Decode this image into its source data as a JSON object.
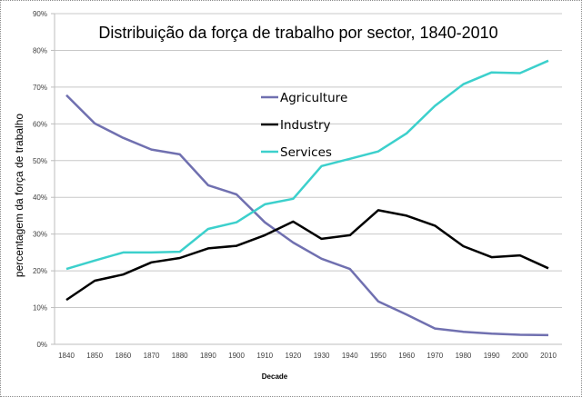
{
  "chart_data": {
    "type": "line",
    "title": "Distribuição da força de trabalho por sector, 1840-2010",
    "xlabel": "Decade",
    "ylabel": "percentagem da força de trabalho",
    "ylim": [
      0,
      90
    ],
    "yticks": [
      "0%",
      "10%",
      "20%",
      "30%",
      "40%",
      "50%",
      "60%",
      "70%",
      "80%",
      "90%"
    ],
    "ytick_values": [
      0,
      10,
      20,
      30,
      40,
      50,
      60,
      70,
      80,
      90
    ],
    "grid": true,
    "legend_position": "top-center",
    "x": [
      "1840",
      "1850",
      "1860",
      "1870",
      "1880",
      "1890",
      "1900",
      "1910",
      "1920",
      "1930",
      "1940",
      "1950",
      "1960",
      "1970",
      "1980",
      "1990",
      "2000",
      "2010"
    ],
    "series": [
      {
        "name": "Agriculture",
        "color": "#7070b0",
        "values": [
          67.8,
          60.1,
          56.2,
          53.0,
          51.7,
          43.3,
          40.8,
          33.2,
          27.7,
          23.3,
          20.5,
          11.7,
          8.1,
          4.3,
          3.4,
          2.9,
          2.6,
          2.5
        ]
      },
      {
        "name": "Industry",
        "color": "#000000",
        "values": [
          12.1,
          17.3,
          19.0,
          22.3,
          23.5,
          26.1,
          26.8,
          29.7,
          33.4,
          28.7,
          29.7,
          36.5,
          35.0,
          32.3,
          26.7,
          23.7,
          24.2,
          20.7
        ]
      },
      {
        "name": "Services",
        "color": "#3cd0cc",
        "values": [
          20.5,
          22.8,
          25.0,
          25.0,
          25.2,
          31.4,
          33.2,
          38.1,
          39.6,
          48.5,
          50.5,
          52.5,
          57.4,
          64.9,
          70.8,
          74.0,
          73.8,
          77.2
        ]
      }
    ]
  }
}
